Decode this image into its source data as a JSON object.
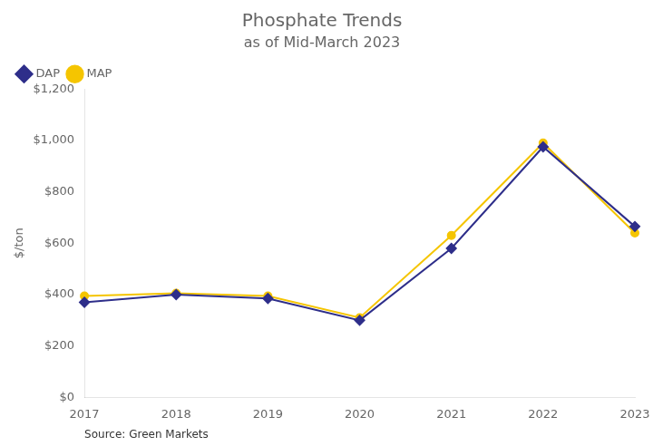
{
  "chart_data": {
    "type": "line",
    "title": "Phosphate Trends",
    "subtitle": "as of Mid-March 2023",
    "ylabel": "$/ton",
    "annotations": [
      "Source: Green Markets"
    ],
    "categories": [
      "2017",
      "2018",
      "2019",
      "2020",
      "2021",
      "2022",
      "2023"
    ],
    "series": [
      {
        "name": "DAP",
        "color": "#2e2e8a",
        "marker": "diamond",
        "values": [
          370,
          400,
          385,
          300,
          580,
          975,
          665
        ]
      },
      {
        "name": "MAP",
        "color": "#f5c500",
        "marker": "circle",
        "values": [
          395,
          405,
          395,
          310,
          630,
          990,
          640
        ]
      }
    ],
    "ylim": [
      0,
      1200
    ],
    "yticks": [
      {
        "value": 0,
        "label": "$0"
      },
      {
        "value": 200,
        "label": "$200"
      },
      {
        "value": 400,
        "label": "$400"
      },
      {
        "value": 600,
        "label": "$600"
      },
      {
        "value": 800,
        "label": "$800"
      },
      {
        "value": 1000,
        "label": "$1,000"
      },
      {
        "value": 1200,
        "label": "$1,200"
      }
    ],
    "grid": false,
    "legend": "upper left"
  }
}
